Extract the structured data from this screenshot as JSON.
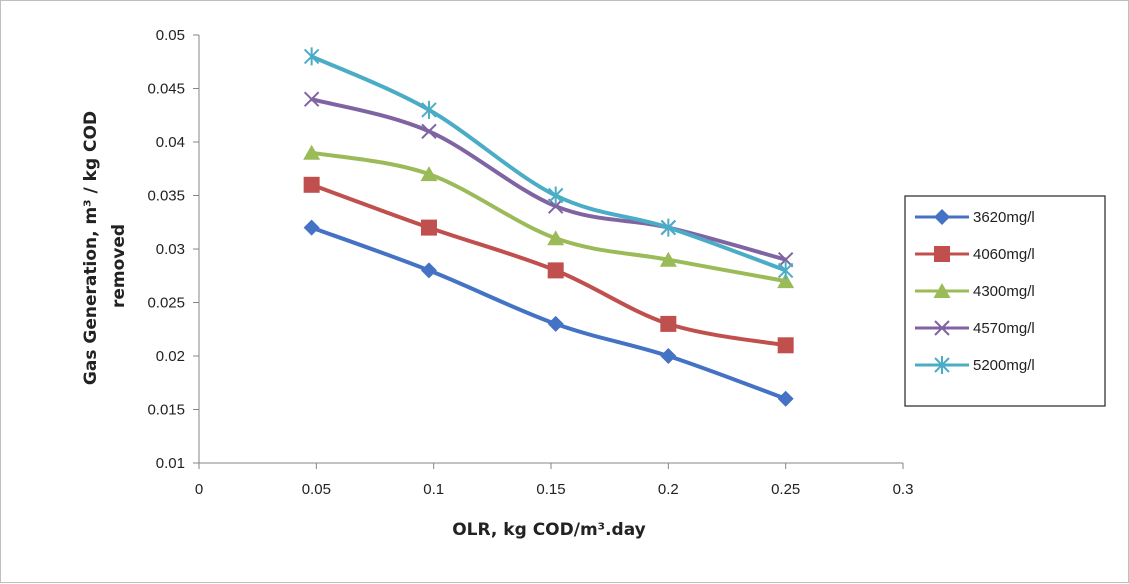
{
  "chart_data": {
    "type": "line",
    "title": "",
    "xlabel": "OLR, kg COD/m³.day",
    "ylabel_lines": [
      "Gas  Generation, m³ / kg COD",
      "removed"
    ],
    "xlim": [
      0,
      0.3
    ],
    "ylim": [
      0.01,
      0.05
    ],
    "x_ticks": [
      "0",
      "0.05",
      "0.1",
      "0.15",
      "0.2",
      "0.25",
      "0.3"
    ],
    "x_tick_values": [
      0,
      0.05,
      0.1,
      0.15,
      0.2,
      0.25,
      0.3
    ],
    "y_ticks": [
      "0.01",
      "0.015",
      "0.02",
      "0.025",
      "0.03",
      "0.035",
      "0.04",
      "0.045",
      "0.05"
    ],
    "y_tick_values": [
      0.01,
      0.015,
      0.02,
      0.025,
      0.03,
      0.035,
      0.04,
      0.045,
      0.05
    ],
    "grid": false,
    "smooth": true,
    "legend_position": "right",
    "series": [
      {
        "name": "3620mg/l",
        "color": "#4472C4",
        "marker": "diamond",
        "x": [
          0.048,
          0.098,
          0.152,
          0.2,
          0.25
        ],
        "values": [
          0.032,
          0.028,
          0.023,
          0.02,
          0.016
        ]
      },
      {
        "name": "4060mg/l",
        "color": "#C0504D",
        "marker": "square",
        "x": [
          0.048,
          0.098,
          0.152,
          0.2,
          0.25
        ],
        "values": [
          0.036,
          0.032,
          0.028,
          0.023,
          0.021
        ]
      },
      {
        "name": "4300mg/l",
        "color": "#9BBB59",
        "marker": "triangle",
        "x": [
          0.048,
          0.098,
          0.152,
          0.2,
          0.25
        ],
        "values": [
          0.039,
          0.037,
          0.031,
          0.029,
          0.027
        ]
      },
      {
        "name": "4570mg/l",
        "color": "#8064A2",
        "marker": "x",
        "x": [
          0.048,
          0.098,
          0.152,
          0.2,
          0.25
        ],
        "values": [
          0.044,
          0.041,
          0.034,
          0.032,
          0.029
        ]
      },
      {
        "name": "5200mg/l",
        "color": "#4BACC6",
        "marker": "star",
        "x": [
          0.048,
          0.098,
          0.152,
          0.2,
          0.25
        ],
        "values": [
          0.048,
          0.043,
          0.035,
          0.032,
          0.028
        ]
      }
    ]
  }
}
